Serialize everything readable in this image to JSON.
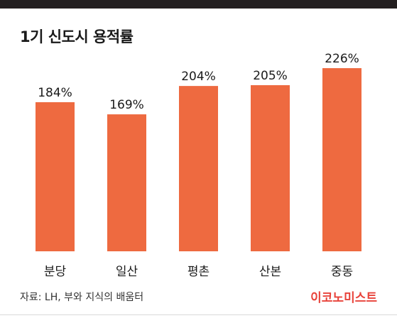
{
  "header": {
    "title": "1기 신도시 용적률"
  },
  "chart_data": {
    "type": "bar",
    "categories": [
      "분당",
      "일산",
      "평촌",
      "산본",
      "중동"
    ],
    "values": [
      184,
      169,
      204,
      205,
      226
    ],
    "value_labels": [
      "184%",
      "169%",
      "204%",
      "205%",
      "226%"
    ],
    "ylim": [
      0,
      226
    ],
    "grid": false,
    "bar_color": "#ee6a40"
  },
  "footer": {
    "source": "자료: LH, 부와 지식의 배움터",
    "brand": "이코노미스트",
    "brand_color": "#e8423a"
  }
}
